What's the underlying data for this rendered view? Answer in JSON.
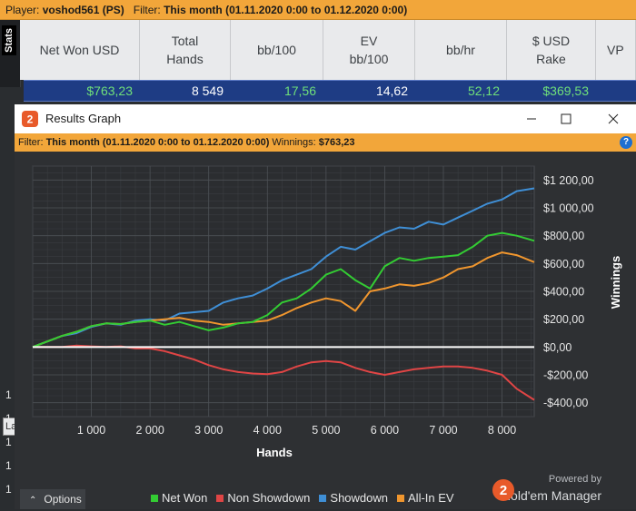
{
  "top_filter": {
    "player_label": "Player:",
    "player_value": "voshod561 (PS)",
    "filter_label": "Filter:",
    "filter_value": "This month (01.11.2020 0:00 to 01.12.2020 0:00)"
  },
  "side_tab": {
    "label": "Stats"
  },
  "stats": {
    "headers": [
      "Net Won USD",
      "Total\nHands",
      "bb/100",
      "EV\nbb/100",
      "bb/hr",
      "$ USD\nRake",
      "VP"
    ],
    "values": [
      "$763,23",
      "8 549",
      "17,56",
      "14,62",
      "52,12",
      "$369,53",
      ""
    ]
  },
  "left_strip": {
    "fragment": "La",
    "numbers": [
      "1",
      "1",
      "1",
      "1",
      "1",
      "1"
    ]
  },
  "window": {
    "title": "Results Graph",
    "filter_label": "Filter:",
    "filter_value": "This month (01.11.2020 0:00 to 01.12.2020 0:00)",
    "winnings_label": "Winnings:",
    "winnings_value": "$763,23",
    "help": "?",
    "app_icon_text": "2"
  },
  "options_label": "Options",
  "brand": {
    "powered": "Powered by",
    "name": "Hold'em Manager",
    "logo_text": "2"
  },
  "colors": {
    "net_won": "#33cc33",
    "non_showdown": "#e04545",
    "showdown": "#3f8fd6",
    "all_in_ev": "#f0962e",
    "filter_bar": "#f2a63a",
    "values_bar": "#1e3c84"
  },
  "chart_data": {
    "type": "line",
    "title": "",
    "xlabel": "Hands",
    "ylabel": "Winnings",
    "xlim": [
      0,
      8549
    ],
    "ylim": [
      -500,
      1300
    ],
    "x_ticks": [
      1000,
      2000,
      3000,
      4000,
      5000,
      6000,
      7000,
      8000
    ],
    "x_tick_labels": [
      "1 000",
      "2 000",
      "3 000",
      "4 000",
      "5 000",
      "6 000",
      "7 000",
      "8 000"
    ],
    "y_ticks": [
      1200,
      1000,
      800,
      600,
      400,
      200,
      0,
      -200,
      -400
    ],
    "y_tick_labels": [
      "$1 200,00",
      "$1 000,00",
      "$800,00",
      "$600,00",
      "$400,00",
      "$200,00",
      "$0,00",
      "-$200,00",
      "-$400,00"
    ],
    "grid": true,
    "legend_position": "bottom",
    "series": [
      {
        "name": "Net Won",
        "color": "#33cc33",
        "x": [
          0,
          250,
          500,
          750,
          1000,
          1250,
          1500,
          1750,
          2000,
          2250,
          2500,
          2750,
          3000,
          3250,
          3500,
          3750,
          4000,
          4250,
          4500,
          4750,
          5000,
          5250,
          5500,
          5750,
          6000,
          6250,
          6500,
          6750,
          7000,
          7250,
          7500,
          7750,
          8000,
          8250,
          8549
        ],
        "y": [
          0,
          40,
          80,
          110,
          150,
          170,
          165,
          180,
          190,
          160,
          180,
          150,
          120,
          140,
          170,
          180,
          230,
          320,
          350,
          420,
          520,
          560,
          480,
          420,
          580,
          640,
          620,
          640,
          650,
          660,
          720,
          800,
          820,
          800,
          763
        ]
      },
      {
        "name": "Non Showdown",
        "color": "#e04545",
        "x": [
          0,
          250,
          500,
          750,
          1000,
          1250,
          1500,
          1750,
          2000,
          2250,
          2500,
          2750,
          3000,
          3250,
          3500,
          3750,
          4000,
          4250,
          4500,
          4750,
          5000,
          5250,
          5500,
          5750,
          6000,
          6250,
          6500,
          6750,
          7000,
          7250,
          7500,
          7750,
          8000,
          8250,
          8549
        ],
        "y": [
          0,
          0,
          0,
          10,
          5,
          0,
          5,
          -10,
          -10,
          -30,
          -60,
          -90,
          -130,
          -160,
          -180,
          -190,
          -195,
          -180,
          -140,
          -110,
          -100,
          -110,
          -150,
          -180,
          -200,
          -180,
          -160,
          -150,
          -140,
          -140,
          -150,
          -170,
          -200,
          -300,
          -380
        ]
      },
      {
        "name": "Showdown",
        "color": "#3f8fd6",
        "x": [
          0,
          250,
          500,
          750,
          1000,
          1250,
          1500,
          1750,
          2000,
          2250,
          2500,
          2750,
          3000,
          3250,
          3500,
          3750,
          4000,
          4250,
          4500,
          4750,
          5000,
          5250,
          5500,
          5750,
          6000,
          6250,
          6500,
          6750,
          7000,
          7250,
          7500,
          7750,
          8000,
          8250,
          8549
        ],
        "y": [
          0,
          40,
          80,
          100,
          145,
          170,
          160,
          190,
          200,
          190,
          240,
          250,
          260,
          320,
          350,
          370,
          420,
          480,
          520,
          560,
          650,
          720,
          700,
          760,
          820,
          860,
          850,
          900,
          880,
          930,
          980,
          1030,
          1060,
          1120,
          1140
        ]
      },
      {
        "name": "All-In EV",
        "color": "#f0962e",
        "x": [
          0,
          250,
          500,
          750,
          1000,
          1250,
          1500,
          1750,
          2000,
          2250,
          2500,
          2750,
          3000,
          3250,
          3500,
          3750,
          4000,
          4250,
          4500,
          4750,
          5000,
          5250,
          5500,
          5750,
          6000,
          6250,
          6500,
          6750,
          7000,
          7250,
          7500,
          7750,
          8000,
          8250,
          8549
        ],
        "y": [
          0,
          40,
          80,
          110,
          150,
          170,
          165,
          180,
          190,
          200,
          210,
          190,
          180,
          160,
          170,
          180,
          190,
          230,
          280,
          320,
          350,
          330,
          260,
          400,
          420,
          450,
          440,
          460,
          500,
          560,
          580,
          640,
          680,
          660,
          610
        ]
      }
    ]
  }
}
